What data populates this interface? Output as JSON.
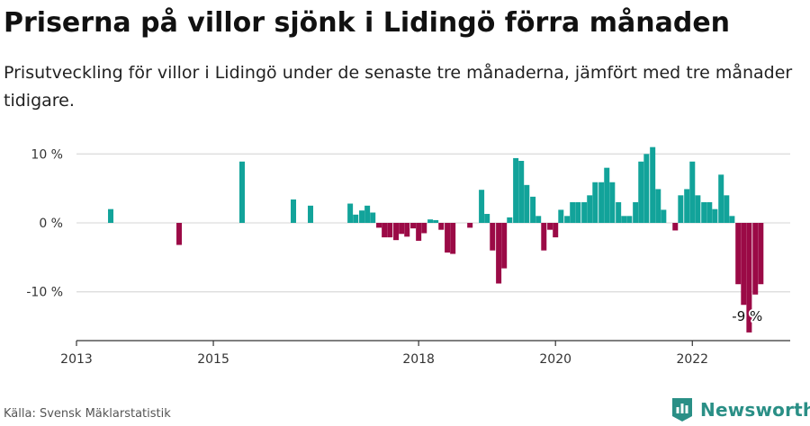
{
  "header": {
    "title": "Priserna på villor sjönk i Lidingö förra månaden",
    "subtitle": "Prisutveckling för villor i Lidingö under de senaste tre månaderna, jämfört med tre månader tidigare."
  },
  "footer": {
    "source": "Källa: Svensk Mäklarstatistik",
    "brand": "Newsworthy"
  },
  "colors": {
    "positive": "#12a39a",
    "negative": "#9b0a46",
    "grid": "#dddddd",
    "axis": "#333333"
  },
  "chart_data": {
    "type": "bar",
    "ylim": [
      -18,
      12
    ],
    "yticks": [
      {
        "value": 10,
        "label": "10 %"
      },
      {
        "value": 0,
        "label": "0 %"
      },
      {
        "value": -10,
        "label": "-10 %"
      }
    ],
    "xlim": [
      2013,
      2023.43
    ],
    "xticks": [
      {
        "value": 2013,
        "label": "2013"
      },
      {
        "value": 2015,
        "label": "2015"
      },
      {
        "value": 2018,
        "label": "2018"
      },
      {
        "value": 2020,
        "label": "2020"
      },
      {
        "value": 2022,
        "label": "2022"
      }
    ],
    "annotation": {
      "x": 2022.75,
      "value": -9,
      "label": "-9 %"
    },
    "bars": [
      {
        "x": 2013.5,
        "value": 2.0
      },
      {
        "x": 2014.5,
        "value": -3.2
      },
      {
        "x": 2015.42,
        "value": 8.9
      },
      {
        "x": 2016.17,
        "value": 3.4
      },
      {
        "x": 2016.42,
        "value": 2.5
      },
      {
        "x": 2017.0,
        "value": 2.8
      },
      {
        "x": 2017.08,
        "value": 1.2
      },
      {
        "x": 2017.17,
        "value": 1.8
      },
      {
        "x": 2017.25,
        "value": 2.5
      },
      {
        "x": 2017.33,
        "value": 1.5
      },
      {
        "x": 2017.42,
        "value": -0.7
      },
      {
        "x": 2017.5,
        "value": -2.1
      },
      {
        "x": 2017.58,
        "value": -2.1
      },
      {
        "x": 2017.67,
        "value": -2.5
      },
      {
        "x": 2017.75,
        "value": -1.6
      },
      {
        "x": 2017.83,
        "value": -2.0
      },
      {
        "x": 2017.92,
        "value": -0.8
      },
      {
        "x": 2018.0,
        "value": -2.6
      },
      {
        "x": 2018.08,
        "value": -1.5
      },
      {
        "x": 2018.17,
        "value": 0.5
      },
      {
        "x": 2018.25,
        "value": 0.4
      },
      {
        "x": 2018.33,
        "value": -1.0
      },
      {
        "x": 2018.42,
        "value": -4.3
      },
      {
        "x": 2018.5,
        "value": -4.5
      },
      {
        "x": 2018.75,
        "value": -0.7
      },
      {
        "x": 2018.92,
        "value": 4.8
      },
      {
        "x": 2019.0,
        "value": 1.3
      },
      {
        "x": 2019.08,
        "value": -4.0
      },
      {
        "x": 2019.17,
        "value": -8.8
      },
      {
        "x": 2019.25,
        "value": -6.6
      },
      {
        "x": 2019.33,
        "value": 0.8
      },
      {
        "x": 2019.42,
        "value": 9.4
      },
      {
        "x": 2019.5,
        "value": 9.0
      },
      {
        "x": 2019.58,
        "value": 5.5
      },
      {
        "x": 2019.67,
        "value": 3.8
      },
      {
        "x": 2019.75,
        "value": 1.0
      },
      {
        "x": 2019.83,
        "value": -4.0
      },
      {
        "x": 2019.92,
        "value": -1.0
      },
      {
        "x": 2020.0,
        "value": -2.1
      },
      {
        "x": 2020.08,
        "value": 1.9
      },
      {
        "x": 2020.17,
        "value": 1.0
      },
      {
        "x": 2020.25,
        "value": 3.0
      },
      {
        "x": 2020.33,
        "value": 3.0
      },
      {
        "x": 2020.42,
        "value": 3.0
      },
      {
        "x": 2020.5,
        "value": 4.0
      },
      {
        "x": 2020.58,
        "value": 5.9
      },
      {
        "x": 2020.67,
        "value": 5.9
      },
      {
        "x": 2020.75,
        "value": 8.0
      },
      {
        "x": 2020.83,
        "value": 5.9
      },
      {
        "x": 2020.92,
        "value": 3.0
      },
      {
        "x": 2021.0,
        "value": 1.0
      },
      {
        "x": 2021.08,
        "value": 1.0
      },
      {
        "x": 2021.17,
        "value": 3.0
      },
      {
        "x": 2021.25,
        "value": 8.9
      },
      {
        "x": 2021.33,
        "value": 10.0
      },
      {
        "x": 2021.42,
        "value": 11.0
      },
      {
        "x": 2021.5,
        "value": 4.9
      },
      {
        "x": 2021.58,
        "value": 1.9
      },
      {
        "x": 2021.75,
        "value": -1.1
      },
      {
        "x": 2021.83,
        "value": 4.0
      },
      {
        "x": 2021.92,
        "value": 4.9
      },
      {
        "x": 2022.0,
        "value": 8.9
      },
      {
        "x": 2022.08,
        "value": 4.0
      },
      {
        "x": 2022.17,
        "value": 3.0
      },
      {
        "x": 2022.25,
        "value": 3.0
      },
      {
        "x": 2022.33,
        "value": 2.0
      },
      {
        "x": 2022.42,
        "value": 7.0
      },
      {
        "x": 2022.5,
        "value": 4.0
      },
      {
        "x": 2022.58,
        "value": 1.0
      },
      {
        "x": 2022.67,
        "value": -8.9
      },
      {
        "x": 2022.75,
        "value": -11.9
      },
      {
        "x": 2022.83,
        "value": -15.9
      },
      {
        "x": 2022.92,
        "value": -10.4
      },
      {
        "x": 2023.0,
        "value": -8.9
      }
    ]
  }
}
